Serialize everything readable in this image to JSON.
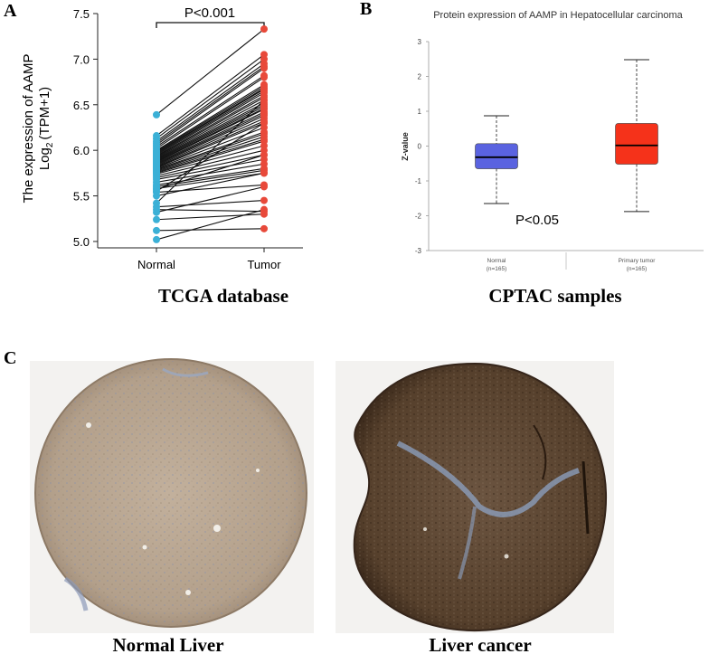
{
  "panels": {
    "a": {
      "letter": "A",
      "caption": "TCGA database"
    },
    "b": {
      "letter": "B",
      "caption": "CPTAC samples"
    },
    "c": {
      "letter": "C",
      "left_caption": "Normal Liver",
      "right_caption": "Liver cancer"
    }
  },
  "colors": {
    "normal": "#3bb0d6",
    "tumor": "#e8493a",
    "box_normal": "#5a63e0",
    "box_tumor": "#f5321a",
    "tissue_normal": "#b8a591",
    "tissue_cancer": "#5b4430",
    "stroma": "#8aa0c0"
  },
  "chart_data": [
    {
      "type": "scatter",
      "subtype": "paired-lines",
      "title": "",
      "ylabel_line1": "The expression of AAMP",
      "ylabel_line2_prefix": "Log",
      "ylabel_line2_sub": "2",
      "ylabel_line2_suffix": "(TPM+1)",
      "categories": [
        "Normal",
        "Tumor"
      ],
      "yticks": [
        "5.0",
        "5.5",
        "6.0",
        "6.5",
        "7.0",
        "7.5"
      ],
      "ylim": [
        4.93,
        7.5
      ],
      "annotation": "P<0.001",
      "pairs": [
        [
          6.39,
          7.33
        ],
        [
          6.16,
          7.05
        ],
        [
          6.13,
          7.0
        ],
        [
          6.1,
          6.95
        ],
        [
          6.08,
          6.92
        ],
        [
          6.06,
          6.9
        ],
        [
          6.04,
          6.82
        ],
        [
          6.02,
          6.8
        ],
        [
          6.0,
          6.72
        ],
        [
          5.99,
          6.7
        ],
        [
          5.98,
          6.68
        ],
        [
          5.97,
          6.67
        ],
        [
          5.96,
          6.65
        ],
        [
          5.95,
          6.63
        ],
        [
          5.94,
          6.6
        ],
        [
          5.93,
          6.58
        ],
        [
          5.92,
          6.55
        ],
        [
          5.91,
          6.52
        ],
        [
          5.9,
          6.5
        ],
        [
          5.89,
          6.48
        ],
        [
          5.88,
          6.46
        ],
        [
          5.87,
          6.45
        ],
        [
          5.86,
          6.42
        ],
        [
          5.85,
          6.4
        ],
        [
          5.84,
          6.38
        ],
        [
          5.83,
          6.35
        ],
        [
          5.82,
          6.32
        ],
        [
          5.81,
          6.3
        ],
        [
          5.8,
          6.25
        ],
        [
          5.79,
          6.2
        ],
        [
          5.78,
          6.18
        ],
        [
          5.77,
          6.15
        ],
        [
          5.76,
          6.12
        ],
        [
          5.75,
          6.1
        ],
        [
          5.74,
          6.05
        ],
        [
          5.72,
          6.0
        ],
        [
          5.7,
          5.95
        ],
        [
          5.68,
          5.9
        ],
        [
          5.65,
          5.85
        ],
        [
          5.62,
          5.8
        ],
        [
          5.6,
          5.78
        ],
        [
          5.58,
          5.75
        ],
        [
          5.57,
          5.95
        ],
        [
          5.55,
          6.3
        ],
        [
          5.54,
          5.62
        ],
        [
          5.5,
          5.75
        ],
        [
          5.42,
          6.55
        ],
        [
          5.38,
          5.45
        ],
        [
          5.35,
          5.33
        ],
        [
          5.32,
          5.6
        ],
        [
          5.24,
          5.3
        ],
        [
          5.12,
          5.14
        ],
        [
          5.02,
          5.35
        ]
      ]
    },
    {
      "type": "box",
      "title": "Protein expression of AAMP in Hepatocellular carcinoma",
      "ylabel": "Z-value",
      "yticks": [
        "3",
        "2",
        "1",
        "0",
        "-1",
        "-2",
        "-3"
      ],
      "ylim": [
        -3,
        3
      ],
      "annotation": "P<0.05",
      "series": [
        {
          "name": "Normal",
          "n_label": "(n=165)",
          "min": -1.65,
          "q1": -0.65,
          "median": -0.32,
          "q3": 0.07,
          "max": 0.87
        },
        {
          "name": "Primary tumor",
          "n_label": "(n=165)",
          "min": -1.88,
          "q1": -0.52,
          "median": 0.02,
          "q3": 0.65,
          "max": 2.48
        }
      ]
    }
  ]
}
